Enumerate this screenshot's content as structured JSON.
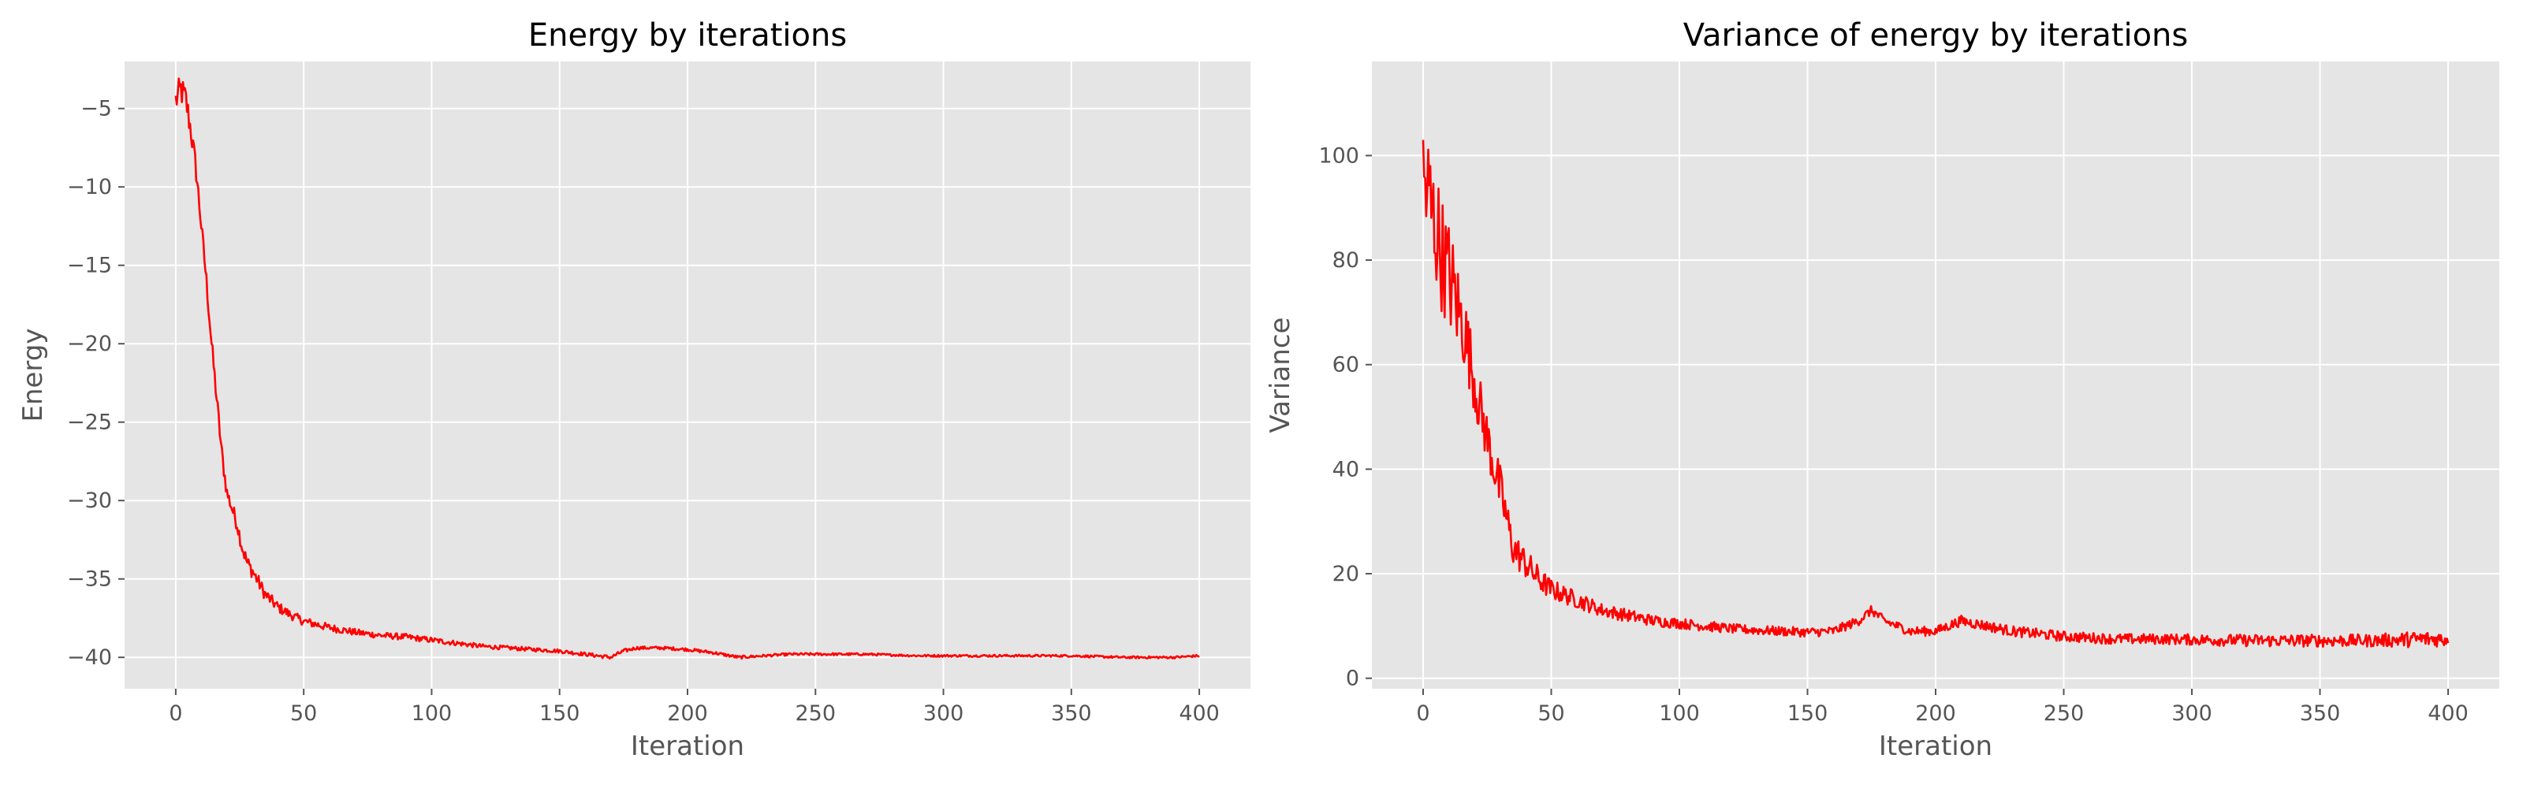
{
  "chart_data": [
    {
      "type": "line",
      "title": "Energy by iterations",
      "xlabel": "Iteration",
      "ylabel": "Energy",
      "xlim": [
        -20,
        420
      ],
      "ylim": [
        -42,
        -2
      ],
      "xticks": [
        0,
        50,
        100,
        150,
        200,
        250,
        300,
        350,
        400
      ],
      "yticks": [
        -40,
        -35,
        -30,
        -25,
        -20,
        -15,
        -10,
        -5
      ],
      "xtick_labels": [
        "0",
        "50",
        "100",
        "150",
        "200",
        "250",
        "300",
        "350",
        "400"
      ],
      "ytick_labels": [
        "−40",
        "−35",
        "−30",
        "−25",
        "−20",
        "−15",
        "−10",
        "−5"
      ],
      "grid": true,
      "background": "#e5e5e5",
      "series": [
        {
          "color": "#ff0000",
          "x": [
            0,
            2,
            4,
            6,
            8,
            10,
            12,
            14,
            16,
            18,
            20,
            22,
            24,
            26,
            28,
            30,
            35,
            40,
            45,
            50,
            60,
            70,
            80,
            90,
            100,
            110,
            120,
            130,
            140,
            150,
            160,
            170,
            175,
            180,
            190,
            200,
            210,
            220,
            230,
            240,
            250,
            270,
            290,
            310,
            330,
            350,
            370,
            390,
            400
          ],
          "y": [
            -4.5,
            -3.8,
            -4.5,
            -6.5,
            -9,
            -12.5,
            -16,
            -20,
            -23.5,
            -27,
            -29.5,
            -30.5,
            -31.5,
            -33,
            -34,
            -34.5,
            -36,
            -36.8,
            -37.3,
            -37.7,
            -38.1,
            -38.4,
            -38.6,
            -38.7,
            -38.9,
            -39.1,
            -39.3,
            -39.4,
            -39.5,
            -39.6,
            -39.8,
            -40.0,
            -39.6,
            -39.4,
            -39.4,
            -39.5,
            -39.7,
            -40.0,
            -39.9,
            -39.8,
            -39.8,
            -39.8,
            -39.9,
            -39.9,
            -39.9,
            -39.9,
            -40.0,
            -40.0,
            -39.9
          ],
          "noise": [
            1.0,
            1.0,
            1.0,
            0.8,
            0.8,
            0.6,
            0.6,
            0.6,
            0.6,
            0.6,
            0.5,
            0.5,
            0.5,
            0.5,
            0.5,
            0.5,
            0.4,
            0.35,
            0.3,
            0.28,
            0.25,
            0.22,
            0.2,
            0.2,
            0.18,
            0.16,
            0.14,
            0.13,
            0.12,
            0.12,
            0.12,
            0.12,
            0.12,
            0.1,
            0.1,
            0.1,
            0.1,
            0.1,
            0.08,
            0.08,
            0.08,
            0.07,
            0.07,
            0.07,
            0.07,
            0.07,
            0.07,
            0.07,
            0.07
          ]
        }
      ]
    },
    {
      "type": "line",
      "title": "Variance of energy by iterations",
      "xlabel": "Iteration",
      "ylabel": "Variance",
      "xlim": [
        -20,
        420
      ],
      "ylim": [
        -2,
        118
      ],
      "xticks": [
        0,
        50,
        100,
        150,
        200,
        250,
        300,
        350,
        400
      ],
      "yticks": [
        0,
        20,
        40,
        60,
        80,
        100
      ],
      "xtick_labels": [
        "0",
        "50",
        "100",
        "150",
        "200",
        "250",
        "300",
        "350",
        "400"
      ],
      "ytick_labels": [
        "0",
        "20",
        "40",
        "60",
        "80",
        "100"
      ],
      "grid": true,
      "background": "#e5e5e5",
      "series": [
        {
          "color": "#ff0000",
          "x": [
            0,
            2,
            4,
            6,
            8,
            10,
            12,
            14,
            16,
            18,
            20,
            22,
            25,
            28,
            30,
            32,
            35,
            40,
            45,
            50,
            60,
            70,
            80,
            90,
            100,
            110,
            120,
            130,
            140,
            150,
            160,
            170,
            175,
            180,
            190,
            200,
            210,
            220,
            230,
            240,
            250,
            270,
            290,
            310,
            330,
            350,
            370,
            390,
            400
          ],
          "y": [
            95,
            92,
            88,
            84,
            80,
            77,
            74,
            70,
            67,
            62,
            57,
            52,
            46,
            40,
            36,
            32,
            25,
            22,
            19,
            17,
            15,
            13,
            12,
            11,
            10.5,
            10,
            9.5,
            9.2,
            9,
            8.8,
            9,
            11,
            13,
            11,
            9,
            9,
            11,
            10,
            9,
            8.5,
            8,
            7.5,
            7.5,
            7.3,
            7.2,
            7.2,
            7.2,
            7.5,
            7.5
          ],
          "noise": [
            14,
            14,
            12,
            12,
            11,
            11,
            10,
            9,
            8,
            7,
            6,
            6,
            5,
            5,
            5,
            4,
            3.5,
            3,
            2.5,
            2,
            1.6,
            1.3,
            1.2,
            1.1,
            1.0,
            1.0,
            0.9,
            0.9,
            0.9,
            0.9,
            0.9,
            0.9,
            0.9,
            0.9,
            0.9,
            0.9,
            1.0,
            1.0,
            1.0,
            1.0,
            1.0,
            1.0,
            1.0,
            1.1,
            1.2,
            1.2,
            1.2,
            1.6,
            1.4
          ]
        }
      ]
    }
  ]
}
